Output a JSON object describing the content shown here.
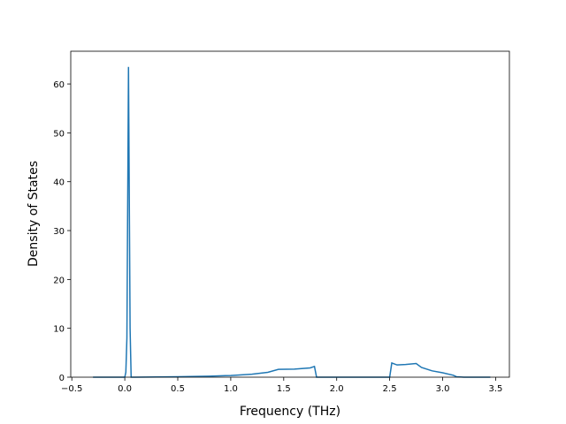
{
  "chart_data": {
    "type": "line",
    "x_label": "Frequency (THz)",
    "y_label": "Density of States",
    "x": [
      -0.3,
      -0.2,
      -0.1,
      0.0,
      0.01,
      0.02,
      0.035,
      0.05,
      0.06,
      0.1,
      0.5,
      0.8,
      1.0,
      1.2,
      1.35,
      1.45,
      1.6,
      1.75,
      1.79,
      1.81,
      2.0,
      2.5,
      2.52,
      2.57,
      2.65,
      2.75,
      2.8,
      2.9,
      3.0,
      3.1,
      3.13,
      3.2,
      3.45
    ],
    "series": [
      {
        "color": "#1f77b4",
        "values": [
          0,
          0,
          0,
          0,
          1,
          8,
          63.5,
          10,
          0,
          0,
          0.1,
          0.2,
          0.35,
          0.6,
          1.0,
          1.6,
          1.65,
          1.9,
          2.2,
          0,
          0,
          0,
          2.9,
          2.5,
          2.6,
          2.8,
          2.0,
          1.3,
          0.9,
          0.4,
          0.1,
          0,
          0
        ]
      }
    ],
    "xlim": [
      -0.51,
      3.63
    ],
    "ylim": [
      0,
      66.7
    ],
    "xticks": [
      {
        "value": -0.5,
        "label": "−0.5"
      },
      {
        "value": 0,
        "label": "0.0"
      },
      0.5,
      {
        "value": 1,
        "label": "1.0"
      },
      1.5,
      {
        "value": 2,
        "label": "2.0"
      },
      2.5,
      {
        "value": 3,
        "label": "3.0"
      },
      3.5
    ],
    "yticks": [
      0,
      10,
      20,
      30,
      40,
      50,
      60
    ]
  }
}
